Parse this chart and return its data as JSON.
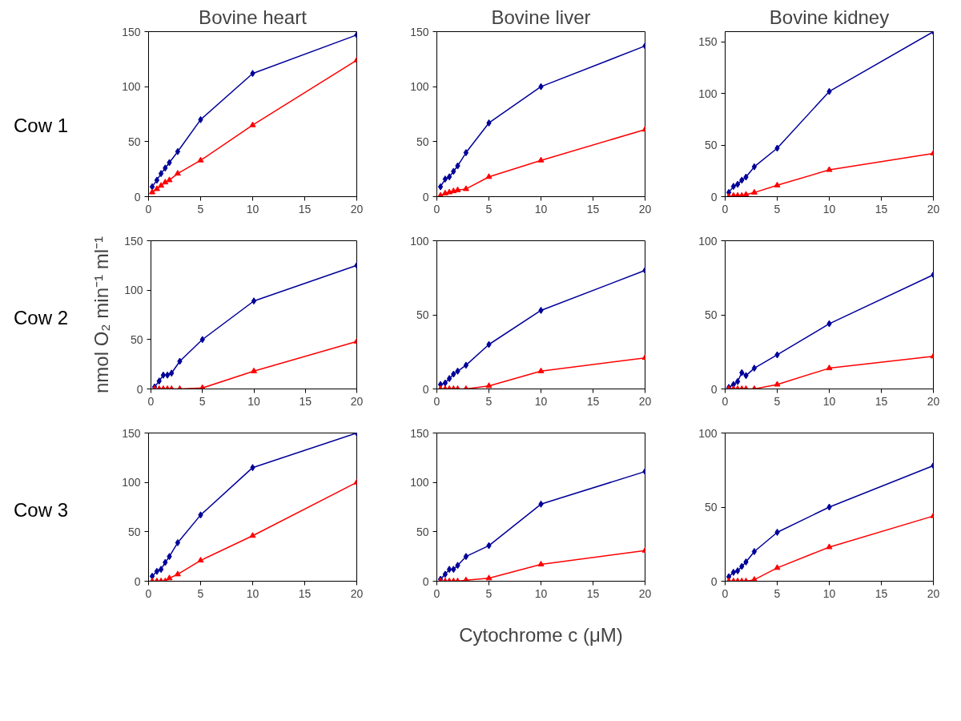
{
  "chart_data": [
    {
      "type": "line",
      "title": "Bovine heart",
      "annotations": [
        "Cow 1"
      ],
      "x": [
        0.35,
        0.8,
        1.2,
        1.6,
        2,
        2.8,
        5,
        10,
        20
      ],
      "xlim": [
        0,
        20
      ],
      "xticks": [
        0,
        5,
        10,
        15,
        20
      ],
      "ylim": [
        0,
        150
      ],
      "yticks": [
        0,
        50,
        100,
        150
      ],
      "grid": false,
      "line_style": "solid",
      "series": [
        {
          "color": "#000099",
          "marker": "diamond",
          "values": [
            9,
            15,
            21,
            26,
            31,
            41,
            70,
            112,
            147
          ]
        },
        {
          "color": "#ff0000",
          "marker": "triangle",
          "values": [
            4,
            7,
            10,
            13,
            15,
            21,
            33,
            65,
            124
          ]
        }
      ]
    },
    {
      "type": "line",
      "title": "Bovine liver",
      "x": [
        0.35,
        0.8,
        1.2,
        1.6,
        2,
        2.8,
        5,
        10,
        20
      ],
      "xlim": [
        0,
        20
      ],
      "xticks": [
        0,
        5,
        10,
        15,
        20
      ],
      "ylim": [
        0,
        150
      ],
      "yticks": [
        0,
        50,
        100,
        150
      ],
      "grid": false,
      "line_style": "solid",
      "series": [
        {
          "color": "#000099",
          "marker": "diamond",
          "values": [
            9,
            16,
            18,
            23,
            28,
            40,
            67,
            100,
            137
          ]
        },
        {
          "color": "#ff0000",
          "marker": "triangle",
          "values": [
            1,
            3,
            4,
            5,
            6,
            7,
            18,
            33,
            61
          ]
        }
      ]
    },
    {
      "type": "line",
      "title": "Bovine kidney",
      "x": [
        0.35,
        0.8,
        1.2,
        1.6,
        2,
        2.8,
        5,
        10,
        20
      ],
      "xlim": [
        0,
        20
      ],
      "xticks": [
        0,
        5,
        10,
        15,
        20
      ],
      "ylim": [
        0,
        160
      ],
      "yticks": [
        0,
        50,
        100,
        150
      ],
      "grid": false,
      "line_style": "solid",
      "series": [
        {
          "color": "#000099",
          "marker": "diamond",
          "values": [
            4,
            10,
            12,
            16,
            19,
            29,
            47,
            102,
            160
          ]
        },
        {
          "color": "#ff0000",
          "marker": "triangle",
          "values": [
            0,
            1,
            1,
            1,
            2,
            4,
            11,
            26,
            42
          ]
        }
      ]
    },
    {
      "type": "line",
      "ylabel": "nmol O₂ min⁻¹ ml⁻¹",
      "annotations": [
        "Cow 2"
      ],
      "x": [
        0.35,
        0.8,
        1.2,
        1.6,
        2,
        2.8,
        5,
        10,
        20
      ],
      "xlim": [
        0,
        20
      ],
      "xticks": [
        0,
        5,
        10,
        15,
        20
      ],
      "ylim": [
        0,
        150
      ],
      "yticks": [
        0,
        50,
        100,
        150
      ],
      "grid": false,
      "line_style": "solid",
      "series": [
        {
          "color": "#000099",
          "marker": "diamond",
          "values": [
            2,
            8,
            14,
            14,
            16,
            28,
            50,
            89,
            125
          ]
        },
        {
          "color": "#ff0000",
          "marker": "triangle",
          "values": [
            0,
            0,
            0,
            0,
            0,
            0,
            1,
            18,
            48
          ]
        }
      ]
    },
    {
      "type": "line",
      "x": [
        0.35,
        0.8,
        1.2,
        1.6,
        2,
        2.8,
        5,
        10,
        20
      ],
      "xlim": [
        0,
        20
      ],
      "xticks": [
        0,
        5,
        10,
        15,
        20
      ],
      "ylim": [
        0,
        100
      ],
      "yticks": [
        0,
        50,
        100
      ],
      "grid": false,
      "line_style": "solid",
      "series": [
        {
          "color": "#000099",
          "marker": "diamond",
          "values": [
            3,
            4,
            7,
            10,
            12,
            16,
            30,
            53,
            80
          ]
        },
        {
          "color": "#ff0000",
          "marker": "triangle",
          "values": [
            0,
            0,
            0,
            0,
            0,
            0,
            2,
            12,
            21
          ]
        }
      ]
    },
    {
      "type": "line",
      "x": [
        0.35,
        0.8,
        1.2,
        1.6,
        2,
        2.8,
        5,
        10,
        20
      ],
      "xlim": [
        0,
        20
      ],
      "xticks": [
        0,
        5,
        10,
        15,
        20
      ],
      "ylim": [
        0,
        100
      ],
      "yticks": [
        0,
        50,
        100
      ],
      "grid": false,
      "line_style": "solid",
      "series": [
        {
          "color": "#000099",
          "marker": "diamond",
          "values": [
            1,
            3,
            5,
            11,
            9,
            14,
            23,
            44,
            77
          ]
        },
        {
          "color": "#ff0000",
          "marker": "triangle",
          "values": [
            0,
            0,
            0,
            0,
            0,
            0,
            3,
            14,
            22
          ]
        }
      ]
    },
    {
      "type": "line",
      "annotations": [
        "Cow 3"
      ],
      "x": [
        0.35,
        0.8,
        1.2,
        1.6,
        2,
        2.8,
        5,
        10,
        20
      ],
      "xlim": [
        0,
        20
      ],
      "xticks": [
        0,
        5,
        10,
        15,
        20
      ],
      "ylim": [
        0,
        150
      ],
      "yticks": [
        0,
        50,
        100,
        150
      ],
      "grid": false,
      "line_style": "solid",
      "series": [
        {
          "color": "#000099",
          "marker": "diamond",
          "values": [
            5,
            10,
            12,
            19,
            25,
            39,
            67,
            115,
            150
          ]
        },
        {
          "color": "#ff0000",
          "marker": "triangle",
          "values": [
            0,
            0,
            0,
            0,
            3,
            7,
            21,
            46,
            100
          ]
        }
      ]
    },
    {
      "type": "line",
      "xlabel": "Cytochrome c (μM)",
      "x": [
        0.35,
        0.8,
        1.2,
        1.6,
        2,
        2.8,
        5,
        10,
        20
      ],
      "xlim": [
        0,
        20
      ],
      "xticks": [
        0,
        5,
        10,
        15,
        20
      ],
      "ylim": [
        0,
        150
      ],
      "yticks": [
        0,
        50,
        100,
        150
      ],
      "grid": false,
      "line_style": "solid",
      "series": [
        {
          "color": "#000099",
          "marker": "diamond",
          "values": [
            2,
            7,
            12,
            12,
            16,
            25,
            36,
            78,
            111
          ]
        },
        {
          "color": "#ff0000",
          "marker": "triangle",
          "values": [
            0,
            0,
            0,
            0,
            0,
            1,
            3,
            17,
            31
          ]
        }
      ]
    },
    {
      "type": "line",
      "x": [
        0.35,
        0.8,
        1.2,
        1.6,
        2,
        2.8,
        5,
        10,
        20
      ],
      "xlim": [
        0,
        20
      ],
      "xticks": [
        0,
        5,
        10,
        15,
        20
      ],
      "ylim": [
        0,
        100
      ],
      "yticks": [
        0,
        50,
        100
      ],
      "grid": false,
      "line_style": "solid",
      "series": [
        {
          "color": "#000099",
          "marker": "diamond",
          "values": [
            3,
            6,
            7,
            10,
            13,
            20,
            33,
            50,
            78
          ]
        },
        {
          "color": "#ff0000",
          "marker": "triangle",
          "values": [
            0,
            0,
            0,
            0,
            0,
            1,
            9,
            23,
            44
          ]
        }
      ]
    }
  ]
}
